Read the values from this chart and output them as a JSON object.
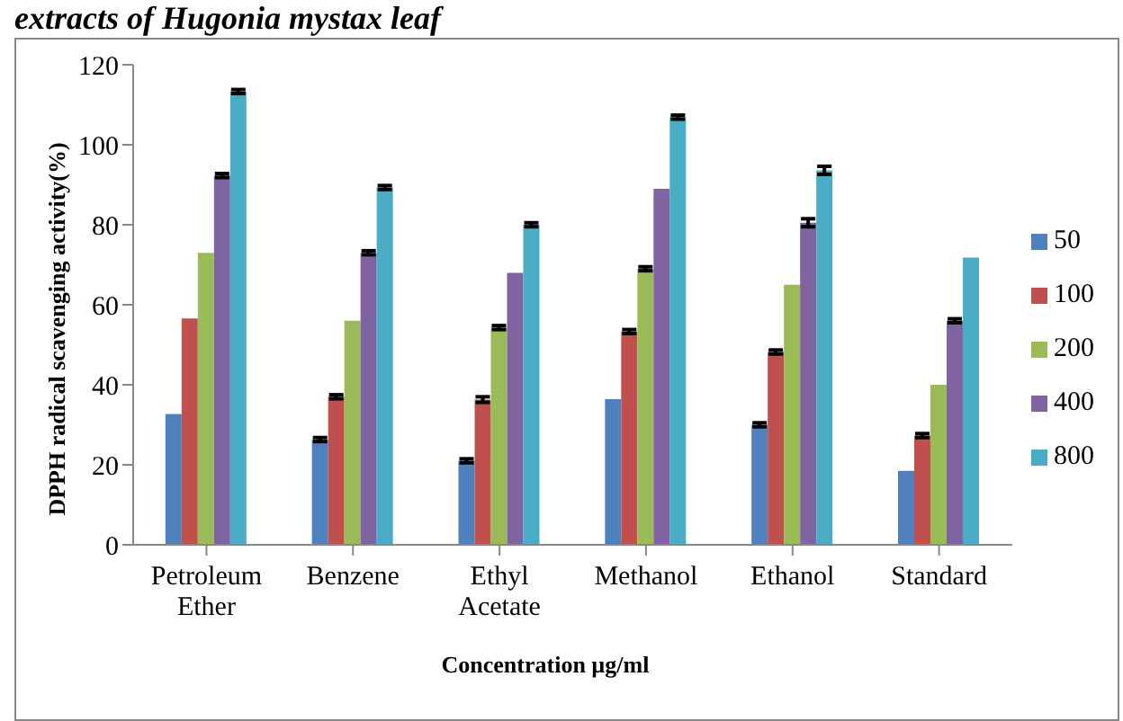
{
  "chart_data": {
    "type": "bar",
    "title": "extracts of Hugonia mystax leaf",
    "xlabel": "Concentration µg/ml",
    "ylabel": "DPPH radical scavenging activity(%)",
    "categories": [
      "Petroleum Ether",
      "Benzene",
      "Ethyl Acetate",
      "Methanol",
      "Ethanol",
      "Standard"
    ],
    "series": [
      {
        "name": "50",
        "color": "#4f81bd",
        "values": [
          32.7,
          26.3,
          21,
          36.4,
          30,
          18.5
        ],
        "errors": [
          null,
          0.5,
          0.5,
          null,
          0.5,
          null
        ]
      },
      {
        "name": "100",
        "color": "#c0504d",
        "values": [
          56.6,
          37,
          36.3,
          53.3,
          48.2,
          27.3
        ],
        "errors": [
          null,
          0.5,
          0.7,
          0.5,
          0.5,
          0.5
        ]
      },
      {
        "name": "200",
        "color": "#9bbb59",
        "values": [
          73,
          56,
          54.3,
          69,
          65,
          40
        ],
        "errors": [
          null,
          null,
          0.5,
          0.5,
          null,
          null
        ]
      },
      {
        "name": "400",
        "color": "#8064a2",
        "values": [
          92.3,
          73,
          68,
          89,
          80.5,
          56
        ],
        "errors": [
          0.5,
          0.5,
          null,
          null,
          1,
          0.5
        ]
      },
      {
        "name": "800",
        "color": "#4bacc6",
        "values": [
          113.3,
          89.3,
          80,
          106.9,
          93.6,
          71.8
        ],
        "errors": [
          0.5,
          0.5,
          0.5,
          0.5,
          1,
          null
        ]
      }
    ],
    "ylim": [
      0,
      120
    ],
    "yticks": [
      0,
      20,
      40,
      60,
      80,
      100,
      120
    ],
    "legend": "right"
  }
}
